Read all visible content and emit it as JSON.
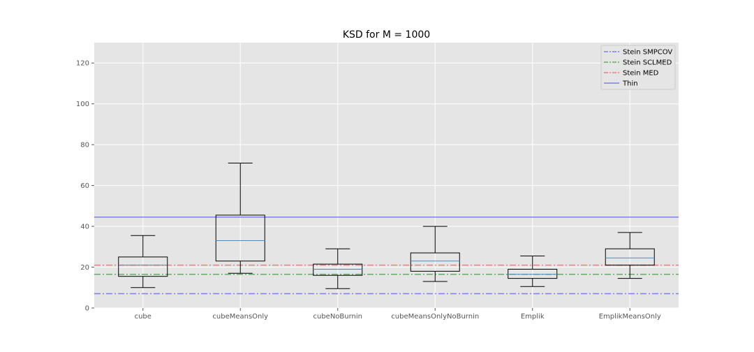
{
  "chart_data": {
    "type": "box",
    "title": "KSD for M = 1000",
    "xlabel": "",
    "ylabel": "",
    "ylim": [
      0,
      130
    ],
    "y_ticks": [
      0,
      20,
      40,
      60,
      80,
      100,
      120
    ],
    "grid": true,
    "legend_position": "top-right",
    "categories": [
      "cube",
      "cubeMeansOnly",
      "cubeNoBurnin",
      "cubeMeansOnlyNoBurnin",
      "Emplik",
      "EmplikMeansOnly"
    ],
    "boxes": [
      {
        "whisker_low": 10,
        "q1": 15.5,
        "median": 21,
        "q3": 25,
        "whisker_high": 35.5
      },
      {
        "whisker_low": 17,
        "q1": 23,
        "median": 33,
        "q3": 45.5,
        "whisker_high": 71
      },
      {
        "whisker_low": 9.5,
        "q1": 16,
        "median": 19,
        "q3": 21.5,
        "whisker_high": 29
      },
      {
        "whisker_low": 13,
        "q1": 18,
        "median": 23,
        "q3": 27,
        "whisker_high": 40
      },
      {
        "whisker_low": 10.5,
        "q1": 14.5,
        "median": 16.5,
        "q3": 19,
        "whisker_high": 25.5
      },
      {
        "whisker_low": 14.5,
        "q1": 21,
        "median": 24.5,
        "q3": 29,
        "whisker_high": 37
      }
    ],
    "reference_lines": [
      {
        "name": "Stein SMPCOV",
        "value": 7,
        "color": "#7f7ff5",
        "style": "dashdot"
      },
      {
        "name": "Stein SCLMED",
        "value": 16.5,
        "color": "#6fa86f",
        "style": "dashdot"
      },
      {
        "name": "Stein MED",
        "value": 21,
        "color": "#f07f7f",
        "style": "dashdot"
      },
      {
        "name": "Thin",
        "value": 44.5,
        "color": "#7f7ff5",
        "style": "solid"
      }
    ],
    "colors": {
      "plot_background": "#e5e5e5",
      "grid": "#ffffff",
      "box_edge": "#000000",
      "median": "#4c8bbf"
    }
  }
}
